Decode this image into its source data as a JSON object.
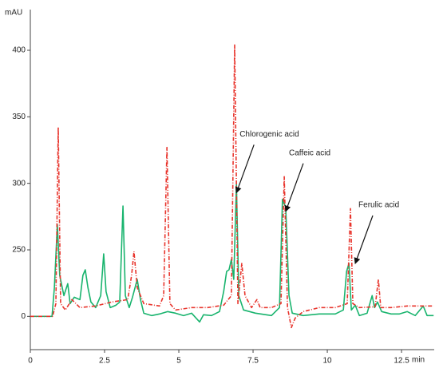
{
  "chart_data": {
    "type": "line",
    "y_label": "mAU",
    "x_label": "min",
    "xlim": [
      0,
      13.6
    ],
    "xticks": [
      0,
      2.5,
      5,
      7.5,
      10,
      12.5
    ],
    "ylim": [
      -125,
      430
    ],
    "yticks": [
      0,
      250,
      300,
      350,
      400
    ],
    "grid": false,
    "series": [
      {
        "color": "#19b46e",
        "dash": "solid",
        "x": [
          0,
          0.73,
          0.81,
          0.91,
          0.99,
          1.13,
          1.26,
          1.34,
          1.48,
          1.67,
          1.77,
          1.85,
          1.94,
          2.04,
          2.2,
          2.37,
          2.47,
          2.55,
          2.69,
          2.88,
          3.01,
          3.12,
          3.2,
          3.33,
          3.44,
          3.6,
          3.71,
          3.82,
          4.09,
          4.35,
          4.62,
          4.89,
          5.16,
          5.43,
          5.7,
          5.83,
          6.1,
          6.37,
          6.51,
          6.61,
          6.69,
          6.77,
          6.85,
          6.94,
          7.02,
          7.18,
          7.58,
          8.12,
          8.39,
          8.49,
          8.6,
          8.71,
          8.82,
          9.19,
          9.73,
          10.27,
          10.54,
          10.65,
          10.73,
          10.81,
          10.94,
          11.08,
          11.34,
          11.51,
          11.59,
          11.69,
          11.83,
          12.15,
          12.42,
          12.69,
          12.96,
          13.23,
          13.36,
          13.58
        ],
        "values": [
          0,
          0,
          108,
          269,
          154,
          78,
          123,
          48,
          72,
          63,
          154,
          175,
          108,
          54,
          33,
          78,
          235,
          93,
          33,
          42,
          54,
          283,
          78,
          33,
          72,
          139,
          63,
          12,
          3,
          9,
          18,
          12,
          3,
          12,
          -21,
          6,
          3,
          18,
          93,
          169,
          175,
          214,
          139,
          299,
          78,
          24,
          12,
          3,
          33,
          288,
          282,
          78,
          12,
          3,
          9,
          9,
          24,
          169,
          199,
          24,
          42,
          3,
          12,
          78,
          33,
          54,
          18,
          9,
          9,
          18,
          3,
          39,
          3,
          3
        ]
      },
      {
        "color": "#e8342c",
        "dash": "dashdot",
        "x": [
          0,
          0.75,
          0.86,
          0.94,
          1.02,
          1.18,
          1.4,
          1.67,
          2.2,
          2.74,
          3.28,
          3.41,
          3.49,
          3.6,
          3.82,
          4.35,
          4.49,
          4.6,
          4.7,
          4.89,
          5.43,
          5.97,
          6.51,
          6.77,
          6.88,
          6.99,
          7.12,
          7.23,
          7.45,
          7.63,
          7.74,
          8.12,
          8.44,
          8.55,
          8.66,
          8.79,
          8.92,
          9.19,
          9.73,
          10.27,
          10.67,
          10.78,
          10.86,
          11.08,
          11.61,
          11.72,
          11.8,
          12.15,
          12.69,
          13.58
        ],
        "values": [
          0,
          0,
          48,
          342,
          48,
          24,
          63,
          33,
          39,
          54,
          63,
          154,
          244,
          108,
          48,
          39,
          78,
          327,
          48,
          24,
          33,
          33,
          42,
          78,
          404,
          48,
          199,
          78,
          33,
          63,
          33,
          33,
          48,
          305,
          33,
          -42,
          -6,
          18,
          33,
          33,
          48,
          281,
          48,
          33,
          36,
          139,
          33,
          33,
          39,
          39
        ]
      }
    ],
    "annotations": [
      {
        "text": "Chlorogenic acid",
        "x": 6.94,
        "y": 293
      },
      {
        "text": "Caffeic acid",
        "x": 8.6,
        "y": 279
      },
      {
        "text": "Ferulic acid",
        "x": 10.94,
        "y": 199
      }
    ]
  }
}
